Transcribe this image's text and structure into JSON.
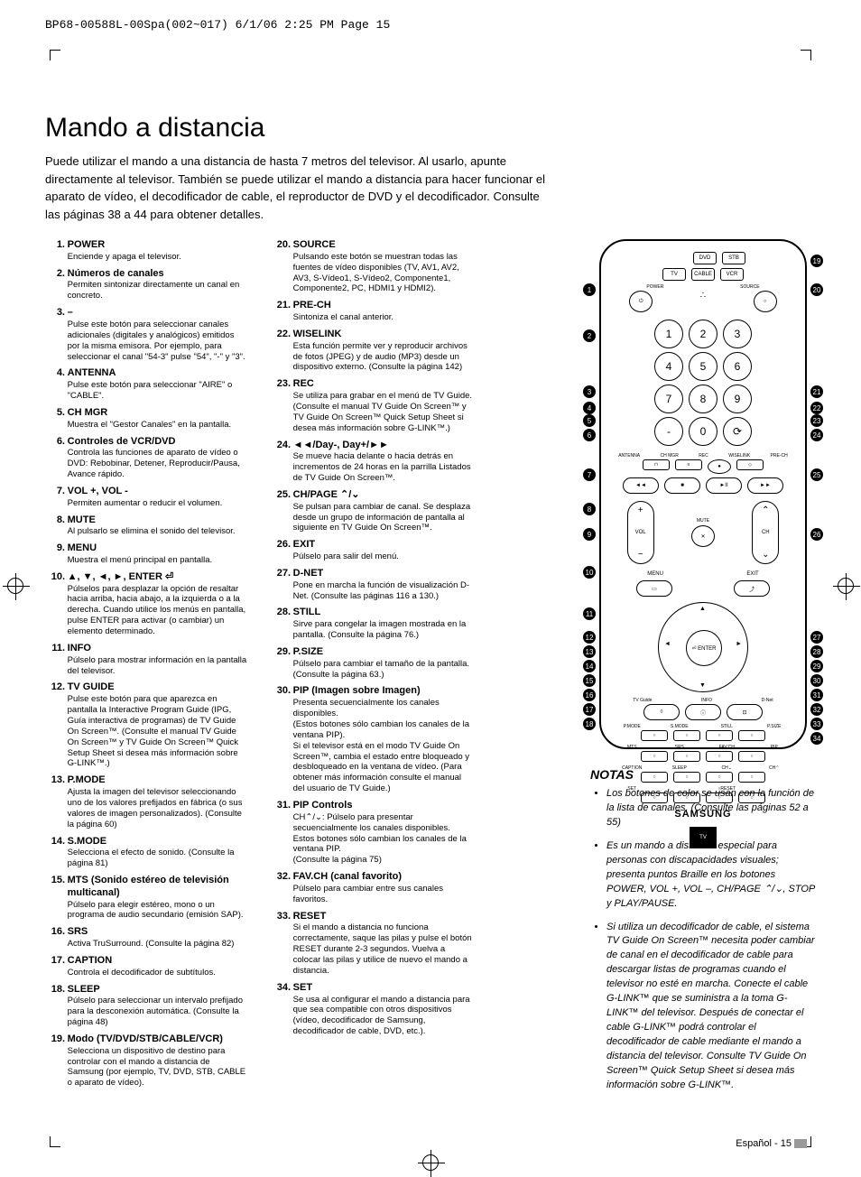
{
  "header": "BP68-00588L-00Spa(002~017)  6/1/06  2:25 PM  Page 15",
  "title": "Mando a distancia",
  "intro": "Puede utilizar el mando a una distancia de hasta 7 metros del televisor. Al usarlo, apunte directamente al televisor.\nTambién se puede utilizar el mando a distancia para hacer funcionar el aparato de vídeo, el decodificador de cable, el reproductor de DVD y el decodificador. Consulte las páginas 38 a 44 para obtener detalles.",
  "col1": [
    {
      "n": "1.",
      "t": "POWER",
      "d": "Enciende y apaga el televisor."
    },
    {
      "n": "2.",
      "t": "Números de canales",
      "d": "Permiten sintonizar directamente un canal en concreto."
    },
    {
      "n": "3.",
      "t": "–",
      "d": "Pulse este botón para seleccionar canales adicionales (digitales y analógicos) emitidos por la misma emisora. Por ejemplo, para seleccionar el canal \"54-3\" pulse \"54\", \"-\" y \"3\"."
    },
    {
      "n": "4.",
      "t": "ANTENNA",
      "d": "Pulse este botón para seleccionar \"AIRE\" o \"CABLE\"."
    },
    {
      "n": "5.",
      "t": "CH MGR",
      "d": "Muestra el \"Gestor Canales\" en la pantalla."
    },
    {
      "n": "6.",
      "t": "Controles de VCR/DVD",
      "d": "Controla las funciones de aparato de vídeo o DVD: Rebobinar, Detener, Reproducir/Pausa, Avance rápido."
    },
    {
      "n": "7.",
      "t": "VOL +, VOL -",
      "d": "Permiten aumentar o reducir el volumen."
    },
    {
      "n": "8.",
      "t": "MUTE",
      "d": "Al pulsarlo se elimina el sonido del televisor."
    },
    {
      "n": "9.",
      "t": "MENU",
      "d": "Muestra el menú principal en pantalla."
    },
    {
      "n": "10.",
      "t": "▲, ▼, ◄, ►, ENTER ⏎",
      "d": "Púlselos para desplazar la opción de resaltar hacia arriba, hacia abajo, a la izquierda o a la derecha. Cuando utilice los menús en pantalla, pulse ENTER para activar (o cambiar) un elemento determinado."
    },
    {
      "n": "11.",
      "t": "INFO",
      "d": "Púlselo para mostrar información en la pantalla del televisor."
    },
    {
      "n": "12.",
      "t": "TV GUIDE",
      "d": "Pulse este botón para que aparezca en pantalla la Interactive Program Guide (IPG, Guía interactiva de programas) de TV Guide On Screen™. (Consulte el manual TV Guide On Screen™ y TV Guide On Screen™ Quick Setup Sheet si desea más información sobre G-LINK™.)"
    },
    {
      "n": "13.",
      "t": "P.MODE",
      "d": "Ajusta la imagen del televisor seleccionando uno de los valores prefijados en fábrica (o sus valores de imagen personalizados). (Consulte la página 60)"
    },
    {
      "n": "14.",
      "t": "S.MODE",
      "d": "Selecciona el efecto de sonido. (Consulte la página 81)"
    },
    {
      "n": "15.",
      "t": "MTS (Sonido estéreo de televisión multicanal)",
      "d": "Púlselo para elegir estéreo, mono o un programa de audio secundario (emisión SAP)."
    },
    {
      "n": "16.",
      "t": "SRS",
      "d": "Activa TruSurround. (Consulte la página 82)"
    },
    {
      "n": "17.",
      "t": "CAPTION",
      "d": "Controla el decodificador de subtítulos."
    },
    {
      "n": "18.",
      "t": "SLEEP",
      "d": "Púlselo para seleccionar un intervalo prefijado para la desconexión automática. (Consulte la página 48)"
    },
    {
      "n": "19.",
      "t": "Modo (TV/DVD/STB/CABLE/VCR)",
      "d": "Selecciona un dispositivo de destino para controlar con el mando a distancia de Samsung (por ejemplo, TV, DVD, STB, CABLE o aparato de vídeo)."
    }
  ],
  "col2": [
    {
      "n": "20.",
      "t": "SOURCE",
      "d": "Pulsando este botón se muestran todas las fuentes de vídeo disponibles (TV, AV1, AV2, AV3, S-Vídeo1, S-Vídeo2, Componente1, Componente2, PC, HDMI1 y HDMI2)."
    },
    {
      "n": "21.",
      "t": "PRE-CH",
      "d": "Sintoniza el canal anterior."
    },
    {
      "n": "22.",
      "t": "WISELINK",
      "d": "Esta función permite ver y reproducir archivos de fotos (JPEG) y de audio (MP3) desde un dispositivo externo. (Consulte la página 142)"
    },
    {
      "n": "23.",
      "t": "REC",
      "d": "Se utiliza para grabar en el menú de TV Guide. (Consulte el manual TV Guide On Screen™ y TV Guide On Screen™ Quick Setup Sheet si desea más información sobre G-LINK™.)"
    },
    {
      "n": "24.",
      "t": "◄◄/Day-, Day+/►►",
      "d": "Se mueve hacia delante o hacia detrás en incrementos de 24 horas en la parrilla Listados de TV Guide On Screen™."
    },
    {
      "n": "25.",
      "t": "CH/PAGE ⌃/⌄",
      "d": "Se pulsan para cambiar de canal. Se desplaza desde un grupo de información de pantalla al siguiente en TV Guide On Screen™."
    },
    {
      "n": "26.",
      "t": "EXIT",
      "d": "Púlselo para salir del menú."
    },
    {
      "n": "27.",
      "t": "D-NET",
      "d": "Pone en marcha la función de visualización D-Net. (Consulte las páginas 116 a 130.)"
    },
    {
      "n": "28.",
      "t": "STILL",
      "d": "Sirve para congelar la imagen mostrada en la pantalla. (Consulte la página 76.)"
    },
    {
      "n": "29.",
      "t": "P.SIZE",
      "d": "Púlselo para cambiar el tamaño de la pantalla. (Consulte la página 63.)"
    },
    {
      "n": "30.",
      "t": "PIP (Imagen sobre Imagen)",
      "d": "Presenta secuencialmente los canales disponibles.\n(Estos botones sólo cambian los canales de la ventana PIP).\nSi el televisor está en el modo TV Guide On Screen™, cambia el estado entre bloqueado y desbloqueado en la ventana de vídeo. (Para obtener más información consulte el manual del usuario de TV Guide.)"
    },
    {
      "n": "31.",
      "t": "PIP Controls",
      "d": "CH⌃/⌄: Púlselo para presentar secuencialmente los canales disponibles. Estos botones sólo cambian los canales de la ventana PIP.\n(Consulte la página 75)"
    },
    {
      "n": "32.",
      "t": "FAV.CH (canal favorito)",
      "d": "Púlselo para cambiar entre sus canales favoritos."
    },
    {
      "n": "33.",
      "t": "RESET",
      "d": "Si el mando a distancia no funciona correctamente, saque las pilas y pulse el botón RESET durante 2-3 segundos. Vuelva a colocar las pilas y utilice de nuevo el mando a distancia."
    },
    {
      "n": "34.",
      "t": "SET",
      "d": "Se usa al configurar el mando a distancia para que sea compatible con otros dispositivos (vídeo, decodificador de Samsung, decodificador de cable, DVD, etc.)."
    }
  ],
  "remote": {
    "top_row": [
      "DVD",
      "STB"
    ],
    "top_row2": [
      "TV",
      "CABLE",
      "VCR"
    ],
    "power": "⏻",
    "source": "○",
    "source_lbl": "SOURCE",
    "power_lbl": "POWER",
    "nums": [
      "1",
      "2",
      "3",
      "4",
      "5",
      "6",
      "7",
      "8",
      "9",
      "-",
      "0",
      "⟳"
    ],
    "row_lbls1": [
      "ANTENNA",
      "CH MGR",
      "REC",
      "WISELINK",
      "PRE-CH"
    ],
    "transport": [
      "◄◄",
      "■",
      "►II",
      "►►"
    ],
    "mute": "✕",
    "mute_lbl": "MUTE",
    "menu": "MENU",
    "exit": "EXIT",
    "enter": "⏎\nENTER",
    "bottom_lbls": [
      "TV Guide",
      "INFO",
      "D-Net"
    ],
    "grid_row1": [
      "P.MODE",
      "S.MODE",
      "STILL",
      "P.SIZE"
    ],
    "grid_row2": [
      "MTS",
      "SRS",
      "FAV.CH",
      "PIP"
    ],
    "grid_row3": [
      "CAPTION",
      "SLEEP",
      "CH⌄",
      "CH⌃"
    ],
    "grid_row4": [
      "SET",
      "",
      "○RESET",
      ""
    ],
    "brand": "SAMSUNG",
    "tvguide": "TV"
  },
  "callouts_left": [
    "1",
    "2",
    "3",
    "4",
    "5",
    "6",
    "7",
    "8",
    "9",
    "10",
    "11",
    "12",
    "13",
    "14",
    "15",
    "16",
    "17",
    "18"
  ],
  "callouts_right": [
    "19",
    "20",
    "21",
    "22",
    "23",
    "24",
    "25",
    "26",
    "27",
    "28",
    "29",
    "30",
    "31",
    "32",
    "33",
    "34"
  ],
  "callout_left_pos": [
    47,
    98,
    160,
    178,
    192,
    208,
    252,
    290,
    318,
    360,
    406,
    432,
    448,
    464,
    480,
    496,
    512,
    528
  ],
  "callout_right_pos": [
    15,
    47,
    160,
    178,
    192,
    208,
    252,
    318,
    432,
    448,
    464,
    480,
    496,
    512,
    528,
    544
  ],
  "notas_title": "NOTAS",
  "notas": [
    "Los botones de color se usan con la función de la lista de canales. (Consulte las páginas 52 a 55)",
    "Es un mando a distancia especial para personas con discapacidades visuales; presenta puntos Braille en los botones POWER, VOL +, VOL –, CH/PAGE ⌃/⌄, STOP y PLAY/PAUSE.",
    "Si utiliza un decodificador de cable, el sistema TV Guide On Screen™ necesita poder cambiar de canal en el decodificador de cable para descargar listas de programas cuando el televisor no esté en marcha. Conecte el cable G-LINK™ que se suministra a la toma G-LINK™ del televisor. Después de conectar el cable G-LINK™ podrá controlar el decodificador de cable mediante el mando a distancia del televisor. Consulte TV Guide On Screen™ Quick Setup Sheet si desea más información sobre G-LINK™."
  ],
  "footer": "Español - 15",
  "colors": {
    "text": "#000000",
    "bg": "#ffffff",
    "bar": "#999999"
  }
}
